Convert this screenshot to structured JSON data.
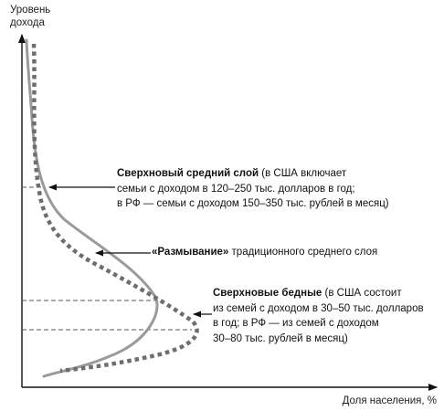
{
  "axes": {
    "y_title": "Уровень\nдохода",
    "x_title": "Доля населения, %"
  },
  "curves": [
    {
      "id": "income-distribution-gray",
      "style": "solid",
      "color": "#9a9a9a"
    },
    {
      "id": "income-distribution-dotted",
      "style": "dotted",
      "color": "#6e6e6e"
    }
  ],
  "annotations": {
    "super_middle": {
      "title": "Сверхновый средний слой",
      "body": " (в США включает\nсемьи с доходом в 120–250 тыс. долларов в год;\nв РФ — семьи с доходом 150–350 тыс. рублей в месяц)"
    },
    "erosion": {
      "title": "«Размывание»",
      "body": " традиционного среднего слоя"
    },
    "super_poor": {
      "title": "Сверхновые бедные",
      "body": " (в США состоит\nиз семей с доходом в 30–50 тыс. долларов\nв год; в РФ — из семей с доходом\n30–80 тыс. рублей в месяц)"
    }
  },
  "colors": {
    "axis": "#111111",
    "arrow": "#111111",
    "guide_dashes": "#555555"
  }
}
